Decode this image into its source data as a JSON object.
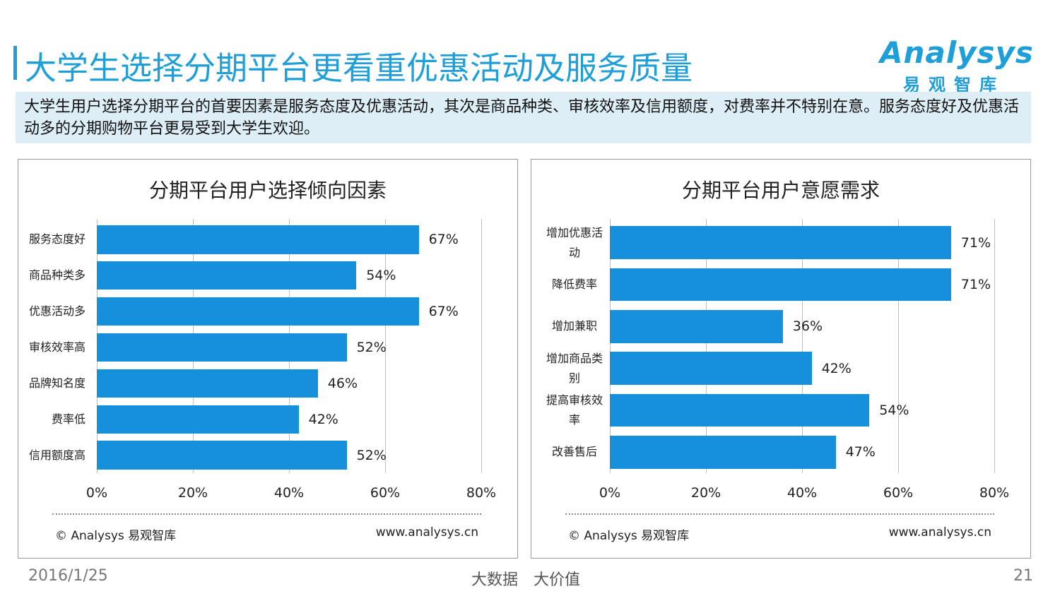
{
  "header": {
    "title": "大学生选择分期平台更看重优惠活动及服务质量",
    "subtitle": "大学生用户选择分期平台的首要因素是服务态度及优惠活动，其次是商品种类、审核效率及信用额度，对费率并不特别在意。服务态度好及优惠活动多的分期购物平台更易受到大学生欢迎。"
  },
  "logo": {
    "name": "Analysys",
    "cn": "易观智库"
  },
  "footer": {
    "date": "2016/1/25",
    "slogan": "大数据　大价值",
    "page": "21"
  },
  "chart_data": [
    {
      "type": "bar",
      "orientation": "horizontal",
      "title": "分期平台用户选择倾向因素",
      "categories": [
        "服务态度好",
        "商品种类多",
        "优惠活动多",
        "审核效率高",
        "品牌知名度",
        "费率低",
        "信用额度高"
      ],
      "values": [
        67,
        54,
        67,
        52,
        46,
        42,
        52
      ],
      "value_labels": [
        "67%",
        "54%",
        "67%",
        "52%",
        "46%",
        "42%",
        "52%"
      ],
      "color": "#1591dc",
      "xlim": [
        0,
        80
      ],
      "xticks": [
        {
          "value": 0,
          "label": "0%"
        },
        {
          "value": 20,
          "label": "20%"
        },
        {
          "value": 40,
          "label": "40%"
        },
        {
          "value": 60,
          "label": "60%"
        },
        {
          "value": 80,
          "label": "80%"
        }
      ],
      "grid": true,
      "source": "© Analysys 易观智库",
      "website": "www.analysys.cn"
    },
    {
      "type": "bar",
      "orientation": "horizontal",
      "title": "分期平台用户意愿需求",
      "categories": [
        "增加优惠活动",
        "降低费率",
        "增加兼职",
        "增加商品类别",
        "提高审核效率",
        "改善售后"
      ],
      "values": [
        71,
        71,
        36,
        42,
        54,
        47
      ],
      "value_labels": [
        "71%",
        "71%",
        "36%",
        "42%",
        "54%",
        "47%"
      ],
      "color": "#1591dc",
      "xlim": [
        0,
        80
      ],
      "xticks": [
        {
          "value": 0,
          "label": "0%"
        },
        {
          "value": 20,
          "label": "20%"
        },
        {
          "value": 40,
          "label": "40%"
        },
        {
          "value": 60,
          "label": "60%"
        },
        {
          "value": 80,
          "label": "80%"
        }
      ],
      "grid": true,
      "source": "© Analysys 易观智库",
      "website": "www.analysys.cn"
    }
  ]
}
